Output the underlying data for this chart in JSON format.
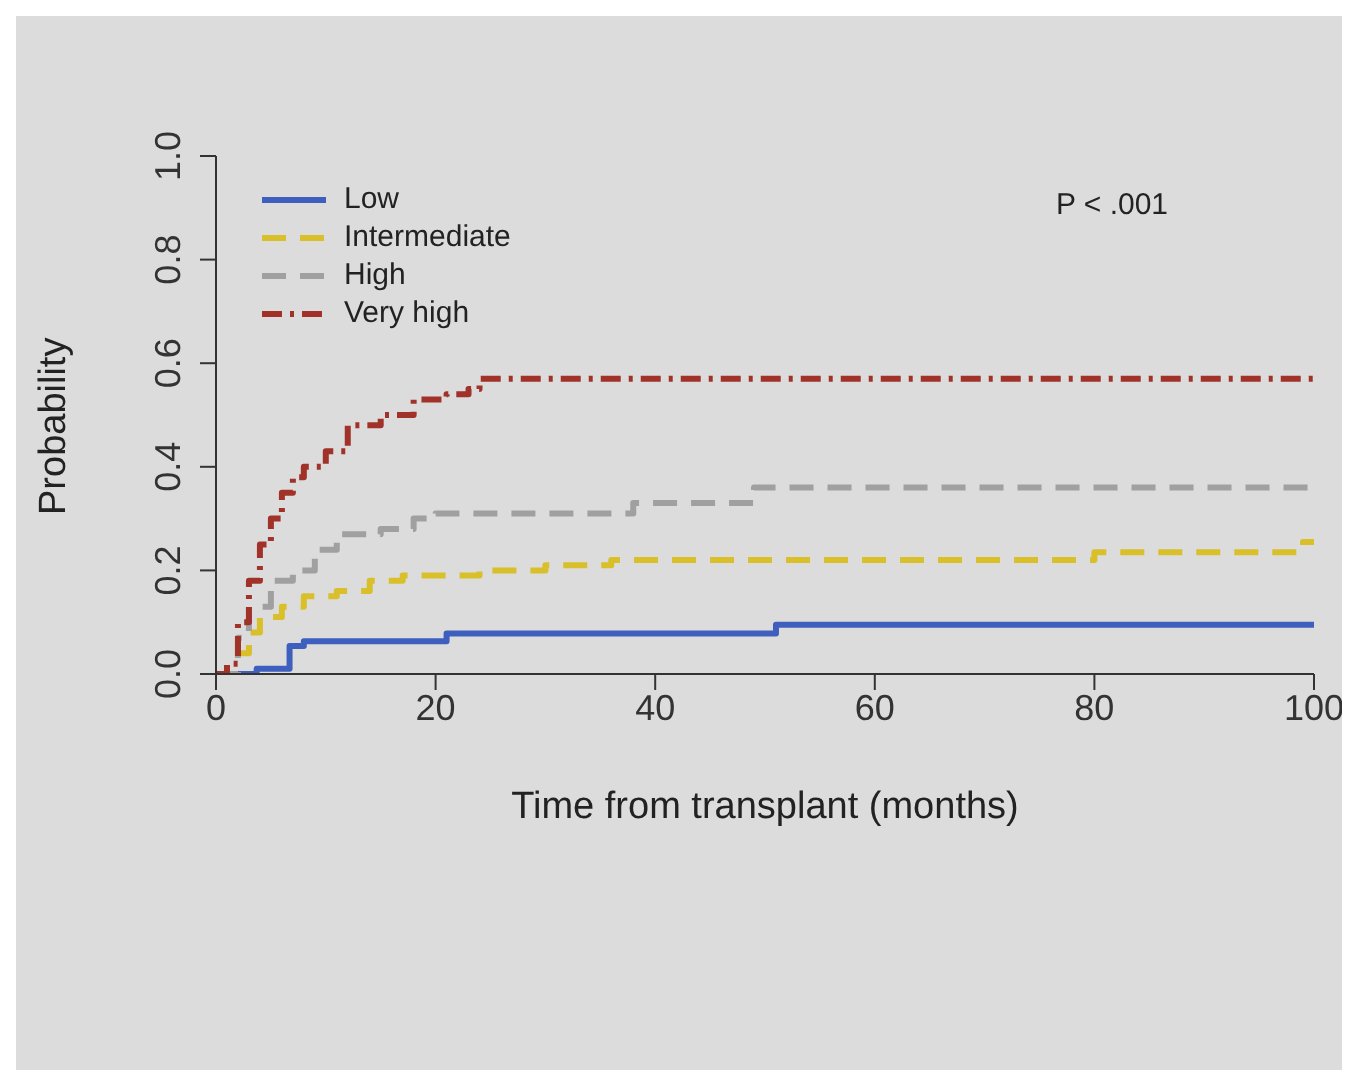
{
  "chart_data": {
    "type": "step",
    "xlabel": "Time from transplant (months)",
    "ylabel": "Probability",
    "annotations": [
      "P < .001"
    ],
    "xlim": [
      0,
      100
    ],
    "xticks": [
      0,
      20,
      40,
      60,
      80,
      100
    ],
    "ylim": [
      0,
      1
    ],
    "yticks": [
      {
        "value": 0,
        "label": "0.0"
      },
      {
        "value": 0.2,
        "label": "0.2"
      },
      {
        "value": 0.4,
        "label": "0.4"
      },
      {
        "value": 0.6,
        "label": "0.6"
      },
      {
        "value": 0.8,
        "label": "0.8"
      },
      {
        "value": 1,
        "label": "1.0"
      }
    ],
    "grid": false,
    "legend": "top left",
    "marker": "none",
    "series": [
      {
        "name": "Low",
        "color": "#3f5fbf",
        "line_style": "solid",
        "x": [
          0,
          3.7,
          6.7,
          8,
          21,
          51,
          100
        ],
        "values": [
          0,
          0.01,
          0.054,
          0.063,
          0.078,
          0.095,
          0.095
        ]
      },
      {
        "name": "Intermediate",
        "color": "#d9bf2a",
        "line_style": "dashed",
        "x": [
          0,
          2,
          3,
          4,
          6,
          8,
          11,
          14,
          17,
          24,
          30,
          36,
          79,
          80,
          99,
          100
        ],
        "values": [
          0,
          0.04,
          0.08,
          0.11,
          0.13,
          0.15,
          0.16,
          0.18,
          0.19,
          0.2,
          0.21,
          0.22,
          0.22,
          0.235,
          0.255,
          0.255
        ]
      },
      {
        "name": "High",
        "color": "#a0a0a0",
        "line_style": "dashed",
        "x": [
          0,
          2,
          3,
          5,
          7,
          9,
          11,
          15,
          18,
          20,
          37,
          38,
          48,
          49,
          100
        ],
        "values": [
          0,
          0.07,
          0.13,
          0.18,
          0.2,
          0.24,
          0.27,
          0.28,
          0.3,
          0.31,
          0.31,
          0.33,
          0.33,
          0.36,
          0.36
        ]
      },
      {
        "name": "Very high",
        "color": "#a0322a",
        "line_style": "dashdot",
        "x": [
          0,
          1,
          2,
          3,
          4,
          5,
          6,
          7,
          8,
          10,
          12,
          15,
          18,
          21,
          23,
          24,
          100
        ],
        "values": [
          0,
          0.02,
          0.1,
          0.18,
          0.25,
          0.3,
          0.35,
          0.38,
          0.4,
          0.43,
          0.48,
          0.5,
          0.53,
          0.54,
          0.55,
          0.57,
          0.57
        ]
      }
    ]
  }
}
